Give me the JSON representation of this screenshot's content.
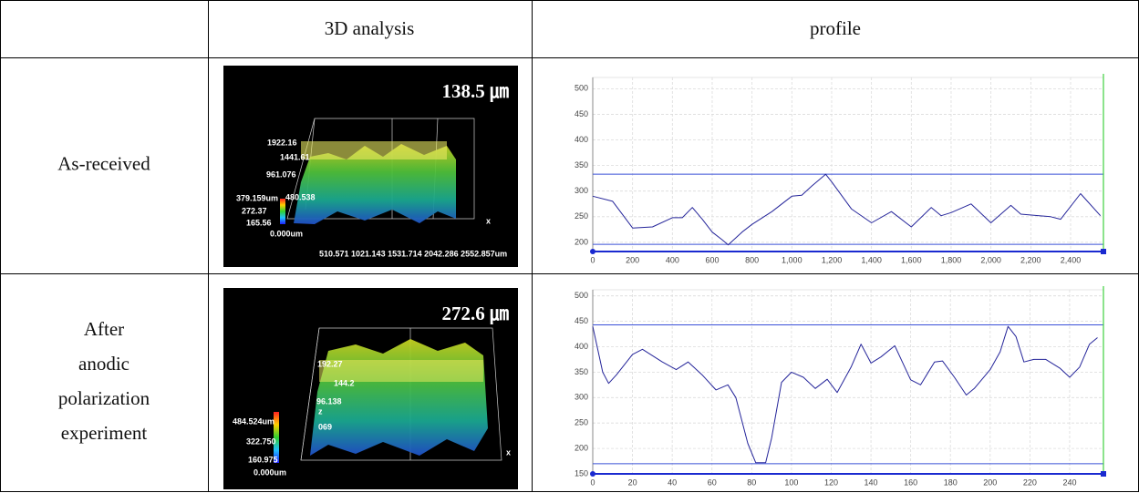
{
  "table": {
    "header": [
      "3D analysis",
      "profile"
    ],
    "rows": [
      {
        "label": [
          "As-received"
        ],
        "image": {
          "height_label": "138.5 ㎛",
          "axis_labels": [
            "1922.16",
            "1441.61",
            "961.076",
            "480.538",
            "379.159um",
            "272.37",
            "165.56",
            "0.000um",
            "510.571   1021.143  1531.714  2042.286  2552.857um",
            "x"
          ]
        }
      },
      {
        "label": [
          "After",
          "anodic",
          "polarization",
          "experiment"
        ],
        "image": {
          "height_label": "272.6 ㎛",
          "axis_labels": [
            "192.27",
            "144.2",
            "96.138",
            "z",
            "484.524um",
            "069",
            "322.750",
            "160.975",
            "0.000um",
            "x"
          ]
        }
      }
    ]
  },
  "chart_data": [
    {
      "type": "line",
      "x": [
        0,
        100,
        200,
        300,
        400,
        450,
        500,
        550,
        600,
        650,
        680,
        750,
        800,
        900,
        1000,
        1050,
        1100,
        1170,
        1200,
        1300,
        1400,
        1500,
        1600,
        1700,
        1750,
        1800,
        1900,
        2000,
        2100,
        2150,
        2300,
        2350,
        2450,
        2550
      ],
      "series": [
        {
          "color": "#25259a",
          "values": [
            290,
            280,
            228,
            230,
            248,
            248,
            268,
            245,
            220,
            205,
            195,
            220,
            235,
            260,
            290,
            292,
            310,
            333,
            318,
            265,
            238,
            260,
            230,
            268,
            252,
            258,
            275,
            238,
            272,
            255,
            250,
            245,
            295,
            252
          ]
        }
      ],
      "hlines": [
        333,
        196
      ],
      "hline_color": "#3a50d8",
      "xlim": [
        0,
        2565
      ],
      "ylim": [
        182,
        522
      ],
      "xticks": [
        0,
        200,
        400,
        600,
        800,
        {
          "value": 1000,
          "label": "1,000"
        },
        {
          "value": 1200,
          "label": "1,200"
        },
        {
          "value": 1400,
          "label": "1,400"
        },
        {
          "value": 1600,
          "label": "1,600"
        },
        {
          "value": 1800,
          "label": "1,800"
        },
        {
          "value": 2000,
          "label": "2,000"
        },
        {
          "value": 2200,
          "label": "2,200"
        },
        {
          "value": 2400,
          "label": "2,400"
        }
      ],
      "yticks": [
        200,
        250,
        300,
        350,
        400,
        450,
        500
      ],
      "grid": true
    },
    {
      "type": "line",
      "x": [
        0,
        5,
        8,
        12,
        20,
        25,
        35,
        42,
        48,
        55,
        62,
        68,
        72,
        78,
        82,
        87,
        90,
        95,
        100,
        106,
        112,
        118,
        123,
        130,
        135,
        140,
        145,
        152,
        160,
        165,
        172,
        176,
        182,
        188,
        192,
        200,
        205,
        209,
        213,
        217,
        222,
        228,
        235,
        240,
        245,
        250,
        254
      ],
      "series": [
        {
          "color": "#25259a",
          "values": [
            440,
            350,
            328,
            345,
            385,
            395,
            370,
            355,
            370,
            345,
            315,
            325,
            300,
            210,
            172,
            172,
            220,
            330,
            350,
            340,
            318,
            336,
            310,
            360,
            405,
            368,
            380,
            402,
            335,
            325,
            370,
            372,
            340,
            305,
            318,
            355,
            390,
            440,
            420,
            370,
            375,
            375,
            358,
            340,
            360,
            405,
            418
          ]
        }
      ],
      "hlines": [
        443,
        170
      ],
      "hline_color": "#3a50d8",
      "xlim": [
        0,
        257
      ],
      "ylim": [
        150,
        512
      ],
      "xticks": [
        0,
        20,
        40,
        60,
        80,
        100,
        120,
        140,
        160,
        180,
        200,
        220,
        240
      ],
      "yticks": [
        150,
        200,
        250,
        300,
        350,
        400,
        450,
        500
      ],
      "grid": true
    }
  ]
}
